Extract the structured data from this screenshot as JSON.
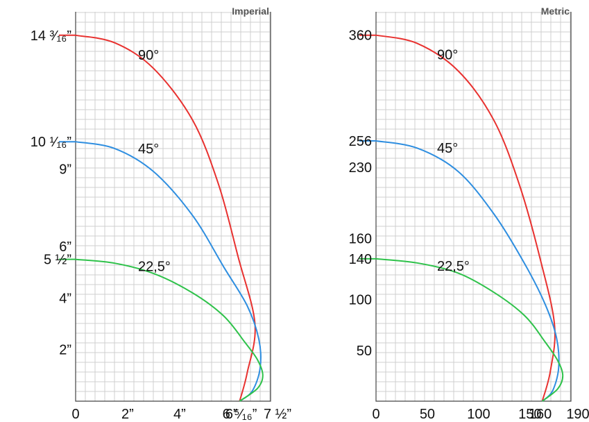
{
  "chart_data": [
    {
      "type": "line",
      "title": "Imperial",
      "xlabel": "",
      "ylabel": "",
      "xlim": [
        0,
        7.5
      ],
      "ylim": [
        0,
        15.1
      ],
      "grid": true,
      "x_ticks": [
        {
          "value": 0,
          "label": "0"
        },
        {
          "value": 2,
          "label": "2”"
        },
        {
          "value": 4,
          "label": "4”"
        },
        {
          "value": 6,
          "label": "6”"
        },
        {
          "value": 6.3125,
          "label": "6 ⁵⁄₁₆”"
        },
        {
          "value": 7.5,
          "label": "7 ½”"
        }
      ],
      "y_ticks": [
        {
          "value": 2,
          "label": "2”"
        },
        {
          "value": 4,
          "label": "4”"
        },
        {
          "value": 5.5,
          "label": "5 ½”"
        },
        {
          "value": 6,
          "label": "6”"
        },
        {
          "value": 9,
          "label": "9”"
        },
        {
          "value": 10.0625,
          "label": "10 ¹⁄₁₆”"
        },
        {
          "value": 14.1875,
          "label": "14 ³⁄₁₆”"
        }
      ],
      "series": [
        {
          "name": "90°",
          "color": "#e8312f",
          "points": [
            [
              0,
              14.19
            ],
            [
              1.5,
              13.9
            ],
            [
              3,
              12.9
            ],
            [
              4.5,
              10.9
            ],
            [
              5.5,
              8.4
            ],
            [
              6.25,
              5.6
            ],
            [
              6.9,
              3.0
            ],
            [
              6.6,
              1.1
            ],
            [
              6.31,
              0
            ]
          ]
        },
        {
          "name": "45°",
          "color": "#2e8ee0",
          "points": [
            [
              0,
              10.06
            ],
            [
              1.5,
              9.8
            ],
            [
              3,
              8.9
            ],
            [
              4.5,
              7.2
            ],
            [
              5.7,
              5.2
            ],
            [
              6.6,
              3.7
            ],
            [
              7.05,
              2.4
            ],
            [
              7.1,
              1.3
            ],
            [
              6.8,
              0.4
            ],
            [
              6.31,
              0
            ]
          ]
        },
        {
          "name": "22,5°",
          "color": "#2ec24a",
          "points": [
            [
              0,
              5.5
            ],
            [
              1.5,
              5.35
            ],
            [
              3,
              4.95
            ],
            [
              4.5,
              4.2
            ],
            [
              5.7,
              3.3
            ],
            [
              6.5,
              2.3
            ],
            [
              7.0,
              1.6
            ],
            [
              7.2,
              1.0
            ],
            [
              7.0,
              0.5
            ],
            [
              6.31,
              0
            ]
          ]
        }
      ]
    },
    {
      "type": "line",
      "title": "Metric",
      "xlabel": "",
      "ylabel": "",
      "xlim": [
        0,
        190
      ],
      "ylim": [
        0,
        383
      ],
      "grid": true,
      "x_ticks": [
        {
          "value": 0,
          "label": "0"
        },
        {
          "value": 50,
          "label": "50"
        },
        {
          "value": 100,
          "label": "100"
        },
        {
          "value": 150,
          "label": "150"
        },
        {
          "value": 160,
          "label": "160"
        },
        {
          "value": 190,
          "label": "190"
        }
      ],
      "y_ticks": [
        {
          "value": 50,
          "label": "50"
        },
        {
          "value": 100,
          "label": "100"
        },
        {
          "value": 140,
          "label": "140"
        },
        {
          "value": 160,
          "label": "160"
        },
        {
          "value": 230,
          "label": "230"
        },
        {
          "value": 256,
          "label": "256"
        },
        {
          "value": 360,
          "label": "360"
        }
      ],
      "series": [
        {
          "name": "90°",
          "color": "#e8312f",
          "points": [
            [
              0,
              360
            ],
            [
              40,
              352
            ],
            [
              80,
              325
            ],
            [
              115,
              276
            ],
            [
              140,
              212
            ],
            [
              160,
              140
            ],
            [
              174,
              75
            ],
            [
              170,
              30
            ],
            [
              162,
              0
            ]
          ]
        },
        {
          "name": "45°",
          "color": "#2e8ee0",
          "points": [
            [
              0,
              256
            ],
            [
              40,
              249
            ],
            [
              80,
              226
            ],
            [
              115,
              184
            ],
            [
              145,
              135
            ],
            [
              165,
              95
            ],
            [
              176,
              62
            ],
            [
              178,
              33
            ],
            [
              172,
              10
            ],
            [
              162,
              0
            ]
          ]
        },
        {
          "name": "22,5°",
          "color": "#2ec24a",
          "points": [
            [
              0,
              140
            ],
            [
              40,
              136
            ],
            [
              80,
              126
            ],
            [
              115,
              107
            ],
            [
              145,
              84
            ],
            [
              165,
              58
            ],
            [
              177,
              40
            ],
            [
              182,
              25
            ],
            [
              177,
              12
            ],
            [
              162,
              0
            ]
          ]
        }
      ]
    }
  ]
}
